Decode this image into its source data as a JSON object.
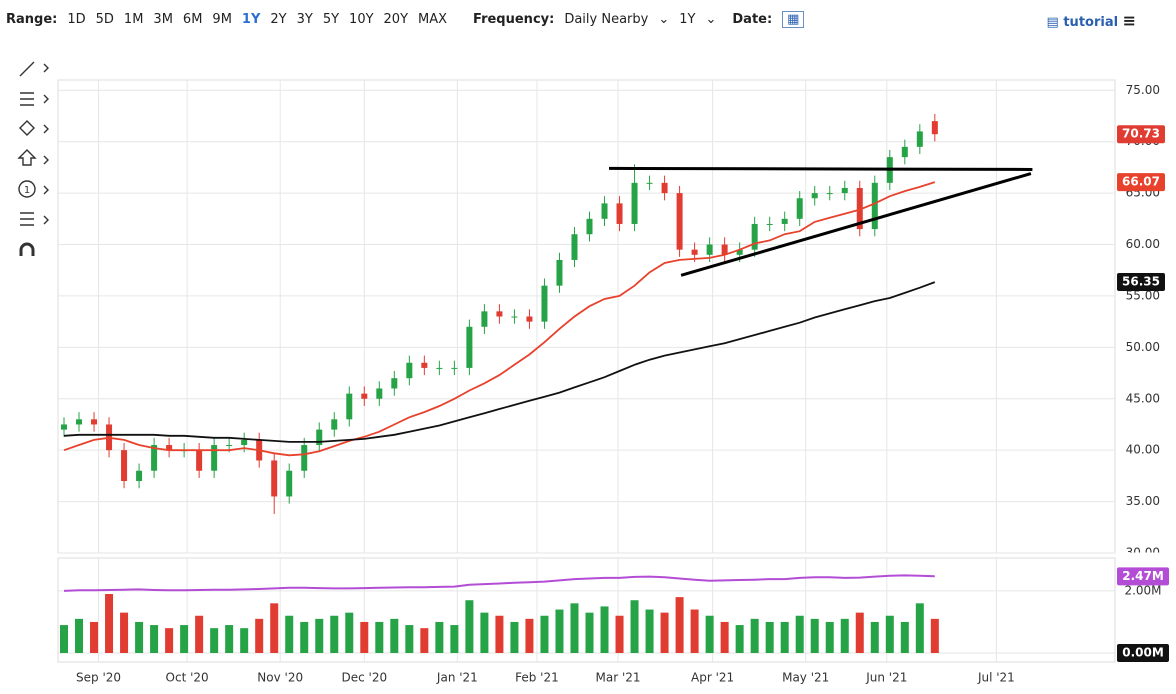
{
  "toolbar": {
    "range_label": "Range:",
    "ranges": [
      "1D",
      "5D",
      "1M",
      "3M",
      "6M",
      "9M",
      "1Y",
      "2Y",
      "3Y",
      "5Y",
      "10Y",
      "20Y",
      "MAX"
    ],
    "active_range": "1Y",
    "frequency_label": "Frequency:",
    "frequency": "Daily Nearby",
    "period": "1Y",
    "date_label": "Date:",
    "tutorial": "tutorial"
  },
  "chart_data": {
    "type": "candlestick",
    "up_color": "#26a346",
    "down_color": "#e03c31",
    "open": [
      42,
      42.5,
      43,
      42.5,
      40,
      37,
      38,
      40.5,
      40,
      40,
      38,
      40.5,
      40.5,
      41,
      39,
      35.5,
      38,
      40.5,
      42,
      43,
      45.5,
      45,
      46,
      47,
      48.5,
      48,
      48,
      48,
      52,
      53.5,
      53,
      53,
      52.5,
      56,
      58.5,
      61,
      62.5,
      64,
      62,
      66,
      66,
      65,
      59.5,
      59,
      60,
      59,
      59.5,
      62,
      62,
      62.5,
      64.5,
      65,
      65,
      65.5,
      61.5,
      66,
      68.5,
      69.5,
      72
    ],
    "high": [
      43.2,
      43.7,
      43.7,
      43.2,
      40.7,
      38.7,
      41.2,
      41.2,
      40.7,
      40.7,
      41.2,
      41.2,
      41.7,
      41.7,
      39.7,
      38.7,
      41.2,
      42.7,
      43.7,
      46.2,
      46.2,
      46.7,
      47.7,
      49.2,
      49.2,
      48.7,
      48.7,
      52.7,
      54.2,
      54.2,
      53.7,
      53.7,
      56.7,
      59.2,
      61.7,
      63.2,
      64.7,
      64.7,
      67.8,
      66.7,
      66.7,
      65.7,
      60.2,
      60.7,
      60.7,
      60.2,
      62.7,
      62.7,
      63.2,
      65.2,
      65.7,
      65.7,
      66.2,
      66.2,
      66.7,
      69.2,
      70.2,
      71.7,
      72.7
    ],
    "low": [
      41.3,
      41.8,
      41.8,
      39.3,
      36.3,
      36.3,
      37.3,
      39.3,
      39.3,
      37.3,
      37.3,
      39.8,
      39.8,
      38.3,
      33.8,
      34.8,
      37.3,
      39.8,
      41.3,
      42.3,
      44.3,
      44.3,
      45.3,
      46.3,
      47.3,
      47.3,
      47.3,
      47.3,
      51.3,
      52.3,
      52.3,
      51.8,
      51.8,
      55.3,
      57.8,
      60.3,
      61.8,
      61.3,
      61.3,
      65.3,
      64.3,
      58.8,
      58.3,
      58.3,
      58.3,
      58.3,
      58.8,
      61.3,
      61.3,
      61.8,
      63.8,
      64.3,
      64.3,
      60.8,
      60.8,
      65.3,
      67.8,
      68.8,
      70.03
    ],
    "close": [
      42.5,
      43,
      42.5,
      40,
      37,
      38,
      40.5,
      40,
      40,
      38,
      40.5,
      40.5,
      41,
      39,
      35.5,
      38,
      40.5,
      42,
      43,
      45.5,
      45,
      46,
      47,
      48.5,
      48,
      48,
      48,
      52,
      53.5,
      53,
      53,
      52.5,
      56,
      58.5,
      61,
      62.5,
      64,
      62,
      66,
      66,
      65,
      59.5,
      59,
      60,
      59,
      59.5,
      62,
      62,
      62.5,
      64.5,
      65,
      65,
      65.5,
      61.5,
      66,
      68.5,
      69.5,
      71,
      70.73
    ],
    "last_color": "#e03c31",
    "series": [
      {
        "color": "#e8412c",
        "values": [
          40,
          40.5,
          41,
          41.2,
          41,
          40.5,
          40.2,
          40,
          40,
          40,
          40,
          40,
          40.2,
          40,
          39.7,
          39.5,
          39.6,
          39.9,
          40.4,
          40.9,
          41.3,
          41.8,
          42.5,
          43.2,
          43.7,
          44.3,
          45,
          45.8,
          46.5,
          47.3,
          48.3,
          49.3,
          50.5,
          51.8,
          53,
          54,
          54.7,
          55,
          56,
          57.3,
          58.2,
          58.5,
          58.6,
          58.7,
          59,
          59.5,
          60.1,
          60.4,
          61,
          61.3,
          62.2,
          62.6,
          63,
          63.4,
          64,
          64.7,
          65.2,
          65.6,
          66.07
        ]
      },
      {
        "color": "#111111",
        "values": [
          41.4,
          41.5,
          41.5,
          41.5,
          41.5,
          41.5,
          41.5,
          41.4,
          41.4,
          41.3,
          41.2,
          41.2,
          41.1,
          41,
          40.9,
          40.8,
          40.8,
          40.8,
          40.9,
          41,
          41.1,
          41.3,
          41.5,
          41.8,
          42.1,
          42.4,
          42.8,
          43.2,
          43.6,
          44,
          44.4,
          44.8,
          45.2,
          45.6,
          46.1,
          46.6,
          47.1,
          47.7,
          48.3,
          48.8,
          49.2,
          49.5,
          49.8,
          50.1,
          50.4,
          50.8,
          51.2,
          51.6,
          52,
          52.4,
          52.9,
          53.3,
          53.7,
          54.1,
          54.5,
          54.8,
          55.3,
          55.8,
          56.35
        ]
      }
    ],
    "drawings": [
      {
        "x": [
          36.3,
          64.5
        ],
        "y": [
          67.4,
          67.3
        ],
        "color": "#000000"
      },
      {
        "x": [
          41.1,
          64.4
        ],
        "y": [
          57.0,
          66.9
        ],
        "color": "#000000"
      }
    ],
    "xlim": [
      -0.4,
      70
    ],
    "xticks": [
      {
        "value": 2.3,
        "label": "Sep '20"
      },
      {
        "value": 8.2,
        "label": "Oct '20"
      },
      {
        "value": 14.4,
        "label": "Nov '20"
      },
      {
        "value": 20,
        "label": "Dec '20"
      },
      {
        "value": 26.2,
        "label": "Jan '21"
      },
      {
        "value": 31.5,
        "label": "Feb '21"
      },
      {
        "value": 36.9,
        "label": "Mar '21"
      },
      {
        "value": 43.2,
        "label": "Apr '21"
      },
      {
        "value": 49.4,
        "label": "May '21"
      },
      {
        "value": 54.8,
        "label": "Jun '21"
      },
      {
        "value": 62.1,
        "label": "Jul '21"
      }
    ],
    "ylim": [
      30,
      76
    ],
    "yticks": [
      {
        "value": 30,
        "label": "30.00"
      },
      {
        "value": 35,
        "label": "35.00"
      },
      {
        "value": 40,
        "label": "40.00"
      },
      {
        "value": 45,
        "label": "45.00"
      },
      {
        "value": 50,
        "label": "50.00"
      },
      {
        "value": 55,
        "label": "55.00"
      },
      {
        "value": 60,
        "label": "60.00"
      },
      {
        "value": 65,
        "label": "65.00"
      },
      {
        "value": 70,
        "label": "70.00"
      },
      {
        "value": 75,
        "label": "75.00"
      }
    ],
    "grid": true,
    "volume": {
      "values": [
        0.9,
        1.1,
        1.0,
        1.9,
        1.3,
        1.0,
        0.9,
        0.8,
        0.9,
        1.2,
        0.8,
        0.9,
        0.8,
        1.1,
        1.6,
        1.2,
        1.0,
        1.1,
        1.2,
        1.3,
        1.0,
        1.0,
        1.1,
        0.9,
        0.8,
        1.0,
        0.9,
        1.7,
        1.3,
        1.2,
        1.0,
        1.1,
        1.2,
        1.4,
        1.6,
        1.3,
        1.5,
        1.2,
        1.7,
        1.4,
        1.3,
        1.8,
        1.4,
        1.2,
        1.0,
        0.9,
        1.1,
        1.0,
        1.0,
        1.2,
        1.1,
        1.0,
        1.1,
        1.3,
        1.0,
        1.2,
        1.0,
        1.6,
        1.1
      ],
      "ylim": [
        -0.29,
        3.06
      ],
      "yticks": [
        {
          "value": 2,
          "label": "2.00M"
        },
        {
          "value": 0,
          "label": "0.00M"
        }
      ],
      "average": {
        "color": "#b44dd6",
        "label": "2.47M",
        "values": [
          2.0,
          2.02,
          2.02,
          2.03,
          2.04,
          2.05,
          2.03,
          2.02,
          2.02,
          2.03,
          2.04,
          2.04,
          2.05,
          2.06,
          2.08,
          2.1,
          2.1,
          2.09,
          2.08,
          2.08,
          2.09,
          2.1,
          2.11,
          2.12,
          2.12,
          2.13,
          2.14,
          2.2,
          2.22,
          2.24,
          2.26,
          2.28,
          2.3,
          2.34,
          2.38,
          2.4,
          2.42,
          2.42,
          2.45,
          2.46,
          2.44,
          2.4,
          2.36,
          2.33,
          2.34,
          2.35,
          2.36,
          2.38,
          2.38,
          2.42,
          2.44,
          2.44,
          2.42,
          2.43,
          2.46,
          2.49,
          2.5,
          2.49,
          2.47
        ]
      }
    }
  }
}
